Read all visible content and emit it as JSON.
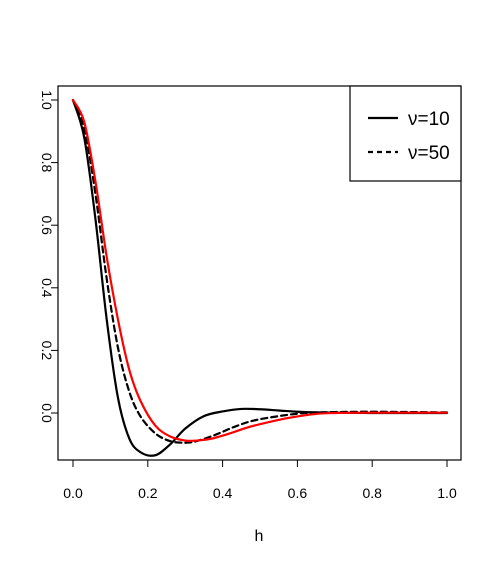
{
  "chart_data": {
    "type": "line",
    "title": "",
    "xlabel": "h",
    "ylabel": "",
    "xlim": [
      0.0,
      1.0
    ],
    "ylim": [
      -0.135,
      1.0
    ],
    "x_ticks": [
      "0.0",
      "0.2",
      "0.4",
      "0.6",
      "0.8",
      "1.0"
    ],
    "y_ticks": [
      "0.0",
      "0.2",
      "0.4",
      "0.6",
      "0.8",
      "1.0"
    ],
    "x_tick_values": [
      0.0,
      0.2,
      0.4,
      0.6,
      0.8,
      1.0
    ],
    "y_tick_values": [
      0.0,
      0.2,
      0.4,
      0.6,
      0.8,
      1.0
    ],
    "grid": false,
    "legend_position": "top-right",
    "series": [
      {
        "name": "ν=10",
        "style": "solid",
        "color": "#000000",
        "x": [
          0.0,
          0.03,
          0.06,
          0.09,
          0.12,
          0.15,
          0.18,
          0.22,
          0.26,
          0.3,
          0.35,
          0.4,
          0.45,
          0.5,
          0.55,
          0.6,
          0.65,
          0.7,
          0.8,
          0.9,
          1.0
        ],
        "y": [
          1.0,
          0.88,
          0.62,
          0.3,
          0.05,
          -0.08,
          -0.125,
          -0.135,
          -0.1,
          -0.05,
          -0.01,
          0.005,
          0.013,
          0.012,
          0.008,
          0.004,
          0.002,
          0.001,
          0.0,
          0.0,
          0.0
        ]
      },
      {
        "name": "ν=50",
        "style": "dashed",
        "color": "#000000",
        "x": [
          0.0,
          0.03,
          0.06,
          0.09,
          0.12,
          0.15,
          0.18,
          0.22,
          0.26,
          0.3,
          0.33,
          0.38,
          0.43,
          0.48,
          0.55,
          0.62,
          0.7,
          0.8,
          0.9,
          1.0
        ],
        "y": [
          1.0,
          0.91,
          0.7,
          0.43,
          0.21,
          0.07,
          -0.01,
          -0.065,
          -0.09,
          -0.095,
          -0.09,
          -0.07,
          -0.045,
          -0.025,
          -0.01,
          0.0,
          0.003,
          0.004,
          0.003,
          0.002
        ]
      },
      {
        "name": "",
        "style": "solid",
        "color": "#ff0000",
        "x": [
          0.0,
          0.03,
          0.06,
          0.09,
          0.12,
          0.15,
          0.18,
          0.22,
          0.26,
          0.3,
          0.33,
          0.37,
          0.42,
          0.47,
          0.52,
          0.58,
          0.65,
          0.7,
          0.8,
          0.9,
          1.0
        ],
        "y": [
          1.0,
          0.93,
          0.74,
          0.5,
          0.3,
          0.14,
          0.04,
          -0.04,
          -0.075,
          -0.088,
          -0.088,
          -0.082,
          -0.065,
          -0.045,
          -0.03,
          -0.015,
          -0.003,
          0.0,
          0.001,
          0.001,
          0.001
        ]
      }
    ]
  }
}
